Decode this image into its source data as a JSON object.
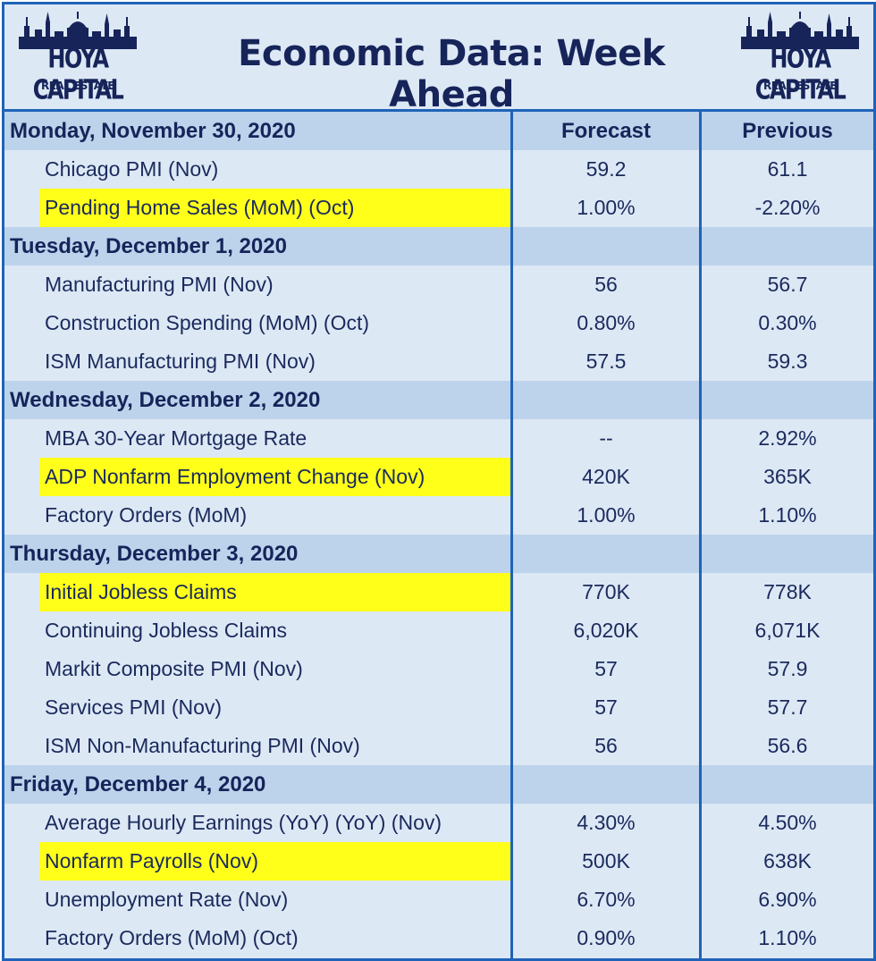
{
  "title": "Economic Data: Week Ahead",
  "logo": {
    "brand": "HOYA CAPITAL",
    "sub": "REAL ESTATE"
  },
  "columns": {
    "forecast": "Forecast",
    "previous": "Previous"
  },
  "colors": {
    "highlight": "#ffff1a",
    "border": "#1f63b8",
    "day_row": "#bcd3eb",
    "body": "#dde8f5",
    "title": "#16245a"
  },
  "rows": [
    {
      "type": "day",
      "name": "Monday, November 30, 2020",
      "forecast": "Forecast",
      "previous": "Previous"
    },
    {
      "type": "item",
      "name": "Chicago PMI (Nov)",
      "forecast": "59.2",
      "previous": "61.1",
      "highlight": false
    },
    {
      "type": "item",
      "name": "Pending Home Sales (MoM) (Oct)",
      "forecast": "1.00%",
      "previous": "-2.20%",
      "highlight": true
    },
    {
      "type": "day",
      "name": "Tuesday, December 1, 2020",
      "forecast": "",
      "previous": ""
    },
    {
      "type": "item",
      "name": "Manufacturing PMI (Nov)",
      "forecast": "56",
      "previous": "56.7",
      "highlight": false
    },
    {
      "type": "item",
      "name": "Construction Spending (MoM) (Oct)",
      "forecast": "0.80%",
      "previous": "0.30%",
      "highlight": false
    },
    {
      "type": "item",
      "name": "ISM Manufacturing PMI (Nov)",
      "forecast": "57.5",
      "previous": "59.3",
      "highlight": false
    },
    {
      "type": "day",
      "name": "Wednesday, December 2, 2020",
      "forecast": "",
      "previous": ""
    },
    {
      "type": "item",
      "name": "MBA 30-Year Mortgage Rate",
      "forecast": "--",
      "previous": "2.92%",
      "highlight": false
    },
    {
      "type": "item",
      "name": "ADP Nonfarm Employment Change (Nov)",
      "forecast": "420K",
      "previous": "365K",
      "highlight": true
    },
    {
      "type": "item",
      "name": "Factory Orders (MoM)",
      "forecast": "1.00%",
      "previous": "1.10%",
      "highlight": false
    },
    {
      "type": "day",
      "name": "Thursday, December 3, 2020",
      "forecast": "",
      "previous": ""
    },
    {
      "type": "item",
      "name": "Initial Jobless Claims",
      "forecast": "770K",
      "previous": "778K",
      "highlight": true
    },
    {
      "type": "item",
      "name": "Continuing Jobless Claims",
      "forecast": "6,020K",
      "previous": "6,071K",
      "highlight": false
    },
    {
      "type": "item",
      "name": "Markit Composite PMI (Nov)",
      "forecast": "57",
      "previous": "57.9",
      "highlight": false
    },
    {
      "type": "item",
      "name": "Services PMI (Nov)",
      "forecast": "57",
      "previous": "57.7",
      "highlight": false
    },
    {
      "type": "item",
      "name": "ISM Non-Manufacturing PMI (Nov)",
      "forecast": "56",
      "previous": "56.6",
      "highlight": false
    },
    {
      "type": "day",
      "name": "Friday, December 4, 2020",
      "forecast": "",
      "previous": ""
    },
    {
      "type": "item",
      "name": "Average Hourly Earnings (YoY) (YoY) (Nov)",
      "forecast": "4.30%",
      "previous": "4.50%",
      "highlight": false
    },
    {
      "type": "item",
      "name": "Nonfarm Payrolls (Nov)",
      "forecast": "500K",
      "previous": "638K",
      "highlight": true
    },
    {
      "type": "item",
      "name": "Unemployment Rate (Nov)",
      "forecast": "6.70%",
      "previous": "6.90%",
      "highlight": false
    },
    {
      "type": "item",
      "name": "Factory Orders (MoM) (Oct)",
      "forecast": "0.90%",
      "previous": "1.10%",
      "highlight": false
    }
  ]
}
